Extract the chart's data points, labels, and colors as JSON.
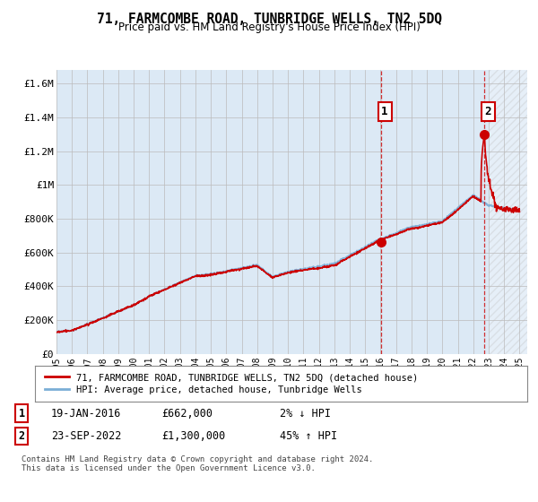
{
  "title": "71, FARMCOMBE ROAD, TUNBRIDGE WELLS, TN2 5DQ",
  "subtitle": "Price paid vs. HM Land Registry's House Price Index (HPI)",
  "ylabel_ticks": [
    "£0",
    "£200K",
    "£400K",
    "£600K",
    "£800K",
    "£1M",
    "£1.2M",
    "£1.4M",
    "£1.6M"
  ],
  "ylabel_values": [
    0,
    200000,
    400000,
    600000,
    800000,
    1000000,
    1200000,
    1400000,
    1600000
  ],
  "ylim": [
    0,
    1680000
  ],
  "xlim_start": 1995.0,
  "xlim_end": 2025.5,
  "hpi_color": "#7aaed6",
  "price_color": "#cc0000",
  "marker1_x": 2016.05,
  "marker1_y": 662000,
  "marker2_x": 2022.73,
  "marker2_y": 1300000,
  "legend_label1": "71, FARMCOMBE ROAD, TUNBRIDGE WELLS, TN2 5DQ (detached house)",
  "legend_label2": "HPI: Average price, detached house, Tunbridge Wells",
  "ann1_label": "1",
  "ann1_date": "19-JAN-2016",
  "ann1_price": "£662,000",
  "ann1_hpi": "2% ↓ HPI",
  "ann2_label": "2",
  "ann2_date": "23-SEP-2022",
  "ann2_price": "£1,300,000",
  "ann2_hpi": "45% ↑ HPI",
  "footer": "Contains HM Land Registry data © Crown copyright and database right 2024.\nThis data is licensed under the Open Government Licence v3.0.",
  "background_color": "#dce9f5",
  "grid_color": "#bbbbbb",
  "hatch_start": 2023.0
}
